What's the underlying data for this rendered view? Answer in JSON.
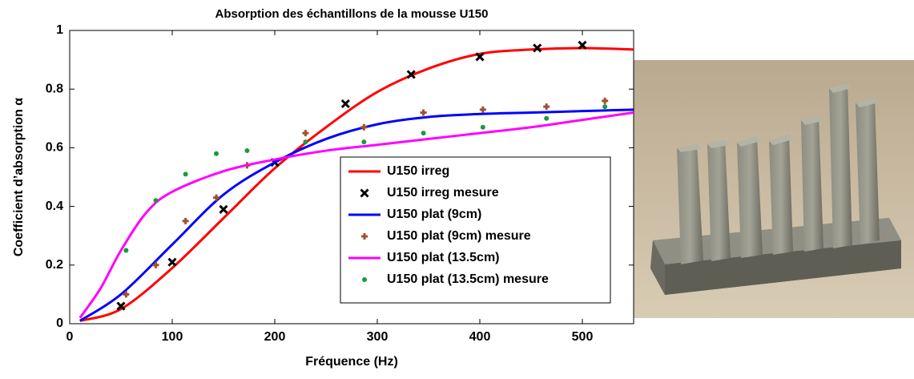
{
  "chart_data": {
    "type": "line",
    "title": "Absorption des échantillons de la mousse U150",
    "x_label": "Fréquence (Hz)",
    "y_label": "Coefficient d’absorption  α",
    "xlim": [
      0,
      550
    ],
    "xticks": [
      0,
      100,
      200,
      300,
      400,
      500
    ],
    "ylim": [
      0,
      1
    ],
    "yticks": [
      0,
      0.2,
      0.4,
      0.6,
      0.8,
      1
    ],
    "legend": "lower right",
    "series": [
      {
        "name": "U150 irreg",
        "color": "#ff0000",
        "style": "line",
        "x": [
          10,
          50,
          100,
          150,
          200,
          250,
          300,
          350,
          400,
          450,
          500,
          550
        ],
        "values": [
          0.01,
          0.05,
          0.19,
          0.36,
          0.53,
          0.67,
          0.79,
          0.87,
          0.92,
          0.935,
          0.94,
          0.935
        ]
      },
      {
        "name": "U150 irreg mesure",
        "color": "#000000",
        "style": "x",
        "x": [
          50,
          100,
          150,
          200,
          269,
          333,
          400,
          456,
          500
        ],
        "values": [
          0.06,
          0.21,
          0.39,
          0.55,
          0.75,
          0.85,
          0.91,
          0.94,
          0.95
        ]
      },
      {
        "name": "U150 plat (9cm)",
        "color": "#0000ff",
        "style": "line",
        "x": [
          10,
          50,
          100,
          150,
          200,
          250,
          300,
          350,
          400,
          450,
          500,
          550
        ],
        "values": [
          0.01,
          0.1,
          0.27,
          0.44,
          0.55,
          0.63,
          0.68,
          0.705,
          0.715,
          0.72,
          0.725,
          0.73
        ]
      },
      {
        "name": "U150 plat (9cm) mesure",
        "color": "#a0522d",
        "style": "plus",
        "x": [
          55,
          84,
          113,
          143,
          173,
          230,
          287,
          345,
          403,
          465,
          522
        ],
        "values": [
          0.1,
          0.2,
          0.35,
          0.43,
          0.54,
          0.65,
          0.67,
          0.72,
          0.73,
          0.74,
          0.76
        ]
      },
      {
        "name": "U150 plat (13.5cm)",
        "color": "#ff00ff",
        "style": "line",
        "x": [
          10,
          30,
          50,
          75,
          100,
          150,
          200,
          250,
          300,
          350,
          400,
          450,
          500,
          550
        ],
        "values": [
          0.02,
          0.12,
          0.25,
          0.38,
          0.45,
          0.52,
          0.56,
          0.59,
          0.61,
          0.63,
          0.65,
          0.67,
          0.695,
          0.72
        ]
      },
      {
        "name": "U150 plat (13.5cm) mesure",
        "color": "#1a9a3a",
        "style": "dot",
        "x": [
          55,
          84,
          113,
          143,
          173,
          230,
          287,
          345,
          403,
          465,
          522
        ],
        "values": [
          0.25,
          0.42,
          0.51,
          0.58,
          0.59,
          0.62,
          0.62,
          0.65,
          0.67,
          0.7,
          0.74
        ]
      }
    ]
  }
}
